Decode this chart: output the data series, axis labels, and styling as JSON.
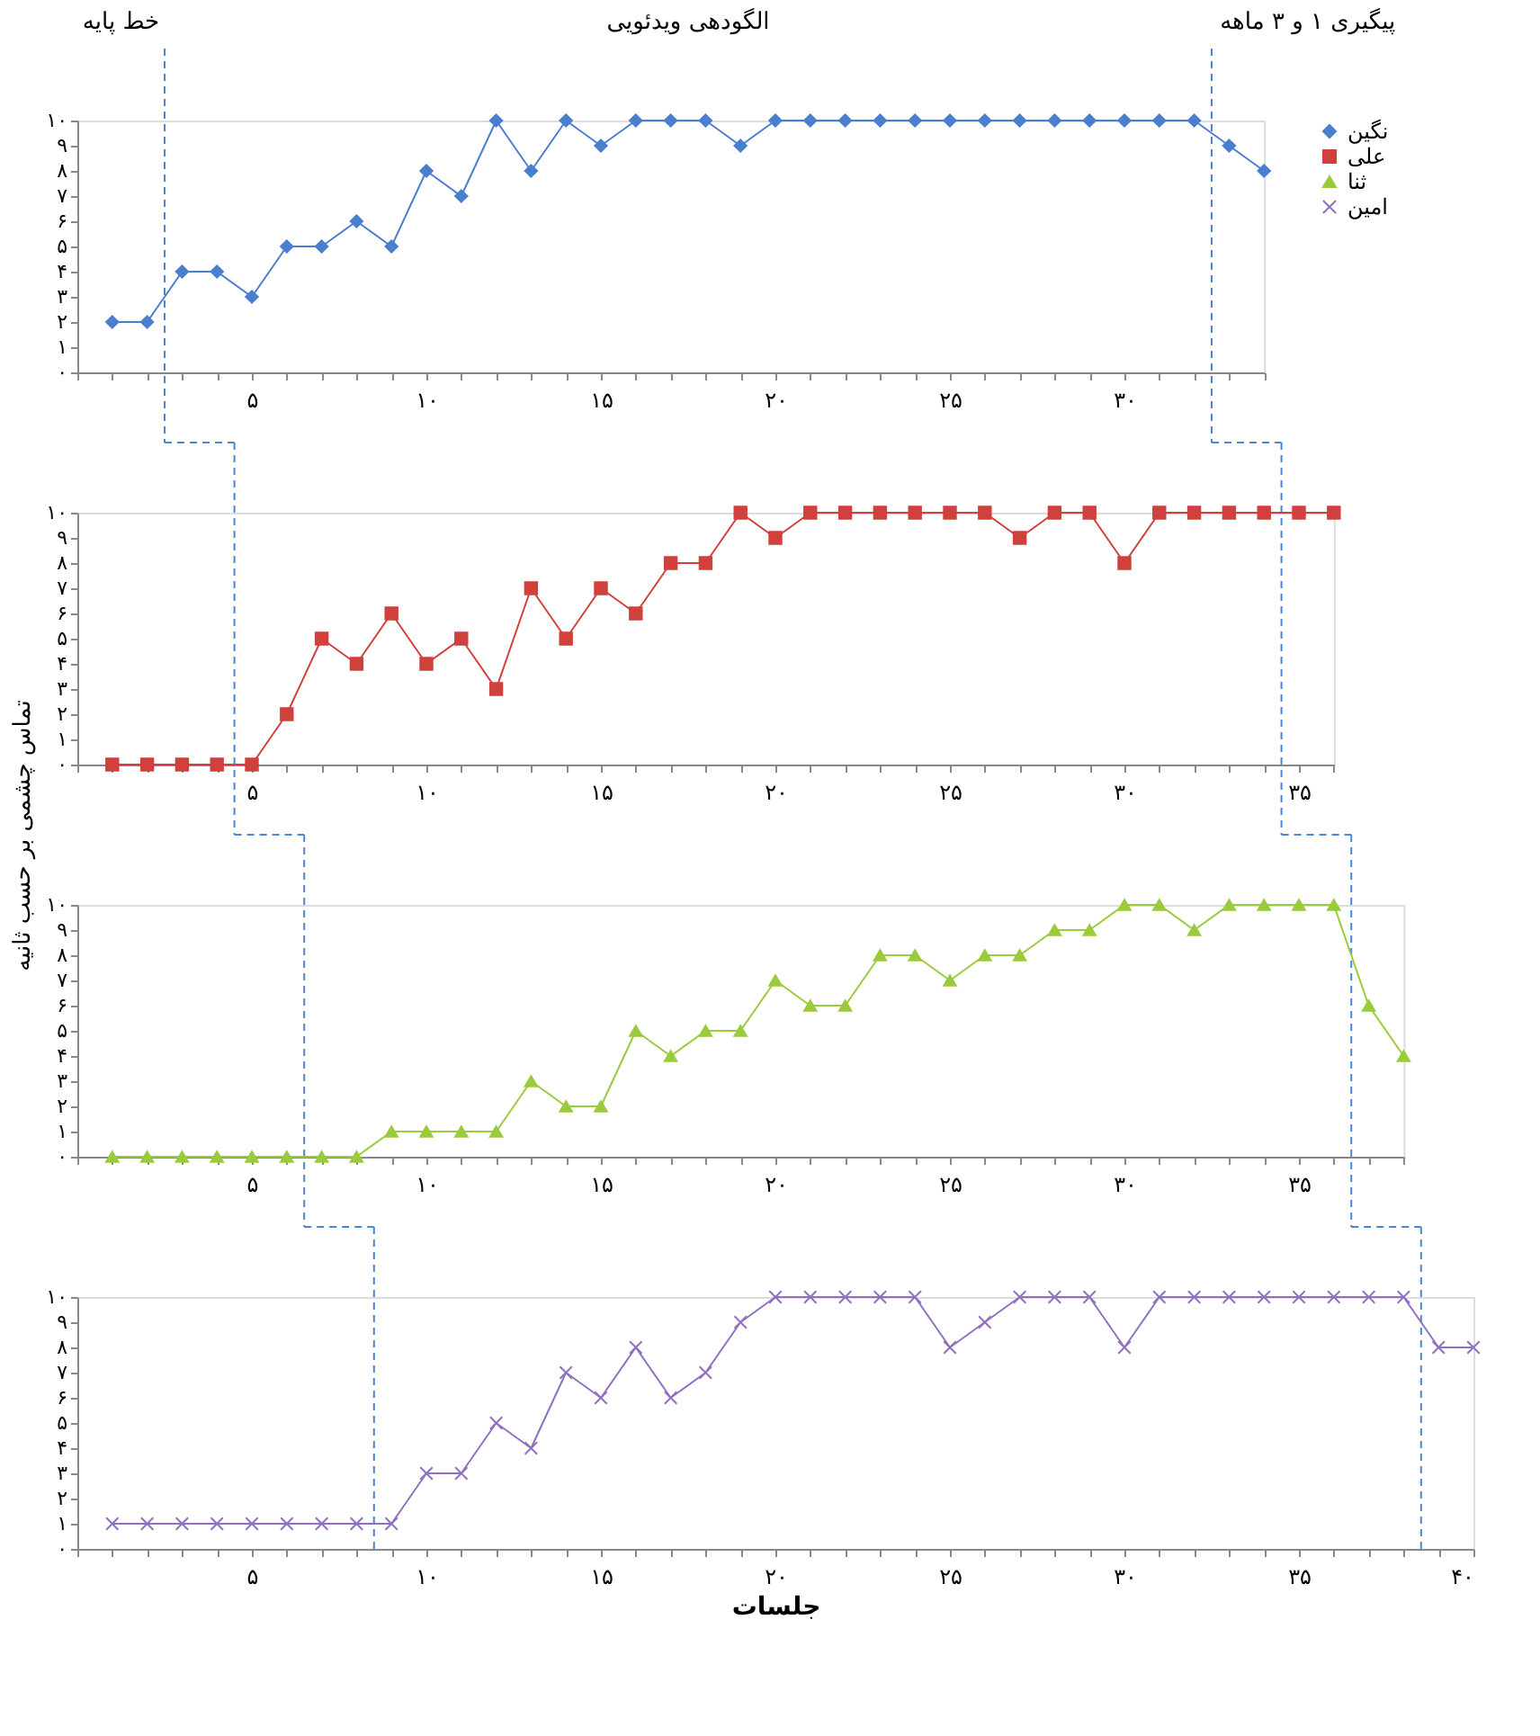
{
  "chart_data": [
    {
      "type": "line",
      "legend": "right",
      "grid": false,
      "annotations": [
        "خط پایه",
        "الگودهی ویدئویی",
        "پیگیری ۱ و ۳ ماهه"
      ],
      "xlim": [
        0,
        34
      ],
      "ylim": [
        0,
        10
      ],
      "xticks": [
        {
          "value": 0,
          "label": null
        },
        {
          "value": 1,
          "label": null
        },
        {
          "value": 2,
          "label": null
        },
        {
          "value": 3,
          "label": null
        },
        {
          "value": 4,
          "label": null
        },
        {
          "value": 5,
          "label": "۵"
        },
        {
          "value": 6,
          "label": null
        },
        {
          "value": 7,
          "label": null
        },
        {
          "value": 8,
          "label": null
        },
        {
          "value": 9,
          "label": null
        },
        {
          "value": 10,
          "label": "۱۰"
        },
        {
          "value": 11,
          "label": null
        },
        {
          "value": 12,
          "label": null
        },
        {
          "value": 13,
          "label": null
        },
        {
          "value": 14,
          "label": null
        },
        {
          "value": 15,
          "label": "۱۵"
        },
        {
          "value": 16,
          "label": null
        },
        {
          "value": 17,
          "label": null
        },
        {
          "value": 18,
          "label": null
        },
        {
          "value": 19,
          "label": null
        },
        {
          "value": 20,
          "label": "۲۰"
        },
        {
          "value": 21,
          "label": null
        },
        {
          "value": 22,
          "label": null
        },
        {
          "value": 23,
          "label": null
        },
        {
          "value": 24,
          "label": null
        },
        {
          "value": 25,
          "label": "۲۵"
        },
        {
          "value": 26,
          "label": null
        },
        {
          "value": 27,
          "label": null
        },
        {
          "value": 28,
          "label": null
        },
        {
          "value": 29,
          "label": null
        },
        {
          "value": 30,
          "label": "۳۰"
        },
        {
          "value": 31,
          "label": null
        },
        {
          "value": 32,
          "label": null
        },
        {
          "value": 33,
          "label": null
        },
        {
          "value": 34,
          "label": null
        }
      ],
      "yticks": [
        {
          "value": 0,
          "label": "۰"
        },
        {
          "value": 1,
          "label": "۱"
        },
        {
          "value": 2,
          "label": "۲"
        },
        {
          "value": 3,
          "label": "۳"
        },
        {
          "value": 4,
          "label": "۴"
        },
        {
          "value": 5,
          "label": "۵"
        },
        {
          "value": 6,
          "label": "۶"
        },
        {
          "value": 7,
          "label": "۷"
        },
        {
          "value": 8,
          "label": "۸"
        },
        {
          "value": 9,
          "label": "۹"
        },
        {
          "value": 10,
          "label": "۱۰"
        }
      ],
      "ref_lines": [
        {
          "axis": "x",
          "value": 2.5,
          "color": "#4a86d4",
          "line_style": "dashed"
        },
        {
          "axis": "x",
          "value": 32.5,
          "color": "#4a86d4",
          "line_style": "dashed"
        }
      ],
      "series": [
        {
          "name": "نگین",
          "color": "#4a7fd0",
          "marker": "diamond",
          "line_style": "solid",
          "x": [
            1,
            2,
            3,
            4,
            5,
            6,
            7,
            8,
            9,
            10,
            11,
            12,
            13,
            14,
            15,
            16,
            17,
            18,
            19,
            20,
            21,
            22,
            23,
            24,
            25,
            26,
            27,
            28,
            29,
            30,
            31,
            32,
            33,
            34
          ],
          "values": [
            2,
            2,
            4,
            4,
            3,
            5,
            5,
            6,
            5,
            8,
            7,
            10,
            8,
            10,
            9,
            10,
            10,
            10,
            9,
            10,
            10,
            10,
            10,
            10,
            10,
            10,
            10,
            10,
            10,
            10,
            10,
            10,
            9,
            8
          ]
        }
      ]
    },
    {
      "type": "line",
      "grid": false,
      "ylabel": "تماس چشمی بر حسب ثانیه",
      "xlim": [
        0,
        36
      ],
      "ylim": [
        0,
        10
      ],
      "xticks": [
        {
          "value": 0,
          "label": null
        },
        {
          "value": 1,
          "label": null
        },
        {
          "value": 2,
          "label": null
        },
        {
          "value": 3,
          "label": null
        },
        {
          "value": 4,
          "label": null
        },
        {
          "value": 5,
          "label": "۵"
        },
        {
          "value": 6,
          "label": null
        },
        {
          "value": 7,
          "label": null
        },
        {
          "value": 8,
          "label": null
        },
        {
          "value": 9,
          "label": null
        },
        {
          "value": 10,
          "label": "۱۰"
        },
        {
          "value": 11,
          "label": null
        },
        {
          "value": 12,
          "label": null
        },
        {
          "value": 13,
          "label": null
        },
        {
          "value": 14,
          "label": null
        },
        {
          "value": 15,
          "label": "۱۵"
        },
        {
          "value": 16,
          "label": null
        },
        {
          "value": 17,
          "label": null
        },
        {
          "value": 18,
          "label": null
        },
        {
          "value": 19,
          "label": null
        },
        {
          "value": 20,
          "label": "۲۰"
        },
        {
          "value": 21,
          "label": null
        },
        {
          "value": 22,
          "label": null
        },
        {
          "value": 23,
          "label": null
        },
        {
          "value": 24,
          "label": null
        },
        {
          "value": 25,
          "label": "۲۵"
        },
        {
          "value": 26,
          "label": null
        },
        {
          "value": 27,
          "label": null
        },
        {
          "value": 28,
          "label": null
        },
        {
          "value": 29,
          "label": null
        },
        {
          "value": 30,
          "label": "۳۰"
        },
        {
          "value": 31,
          "label": null
        },
        {
          "value": 32,
          "label": null
        },
        {
          "value": 33,
          "label": null
        },
        {
          "value": 34,
          "label": null
        },
        {
          "value": 35,
          "label": "۳۵"
        },
        {
          "value": 36,
          "label": null
        }
      ],
      "yticks": [
        {
          "value": 0,
          "label": "۰"
        },
        {
          "value": 1,
          "label": "۱"
        },
        {
          "value": 2,
          "label": "۲"
        },
        {
          "value": 3,
          "label": "۳"
        },
        {
          "value": 4,
          "label": "۴"
        },
        {
          "value": 5,
          "label": "۵"
        },
        {
          "value": 6,
          "label": "۶"
        },
        {
          "value": 7,
          "label": "۷"
        },
        {
          "value": 8,
          "label": "۸"
        },
        {
          "value": 9,
          "label": "۹"
        },
        {
          "value": 10,
          "label": "۱۰"
        }
      ],
      "ref_lines": [
        {
          "axis": "x",
          "value": 4.5,
          "color": "#4a86d4",
          "line_style": "dashed"
        },
        {
          "axis": "x",
          "value": 34.5,
          "color": "#4a86d4",
          "line_style": "dashed"
        }
      ],
      "series": [
        {
          "name": "علی",
          "color": "#d0403c",
          "marker": "square",
          "line_style": "solid",
          "x": [
            1,
            2,
            3,
            4,
            5,
            6,
            7,
            8,
            9,
            10,
            11,
            12,
            13,
            14,
            15,
            16,
            17,
            18,
            19,
            20,
            21,
            22,
            23,
            24,
            25,
            26,
            27,
            28,
            29,
            30,
            31,
            32,
            33,
            34,
            35,
            36
          ],
          "values": [
            0,
            0,
            0,
            0,
            0,
            2,
            5,
            4,
            6,
            4,
            5,
            3,
            7,
            5,
            7,
            6,
            8,
            8,
            10,
            9,
            10,
            10,
            10,
            10,
            10,
            10,
            9,
            10,
            10,
            8,
            10,
            10,
            10,
            10,
            10,
            10
          ]
        }
      ]
    },
    {
      "type": "line",
      "grid": false,
      "xlim": [
        0,
        38
      ],
      "ylim": [
        0,
        10
      ],
      "xticks": [
        {
          "value": 0,
          "label": null
        },
        {
          "value": 1,
          "label": null
        },
        {
          "value": 2,
          "label": null
        },
        {
          "value": 3,
          "label": null
        },
        {
          "value": 4,
          "label": null
        },
        {
          "value": 5,
          "label": "۵"
        },
        {
          "value": 6,
          "label": null
        },
        {
          "value": 7,
          "label": null
        },
        {
          "value": 8,
          "label": null
        },
        {
          "value": 9,
          "label": null
        },
        {
          "value": 10,
          "label": "۱۰"
        },
        {
          "value": 11,
          "label": null
        },
        {
          "value": 12,
          "label": null
        },
        {
          "value": 13,
          "label": null
        },
        {
          "value": 14,
          "label": null
        },
        {
          "value": 15,
          "label": "۱۵"
        },
        {
          "value": 16,
          "label": null
        },
        {
          "value": 17,
          "label": null
        },
        {
          "value": 18,
          "label": null
        },
        {
          "value": 19,
          "label": null
        },
        {
          "value": 20,
          "label": "۲۰"
        },
        {
          "value": 21,
          "label": null
        },
        {
          "value": 22,
          "label": null
        },
        {
          "value": 23,
          "label": null
        },
        {
          "value": 24,
          "label": null
        },
        {
          "value": 25,
          "label": "۲۵"
        },
        {
          "value": 26,
          "label": null
        },
        {
          "value": 27,
          "label": null
        },
        {
          "value": 28,
          "label": null
        },
        {
          "value": 29,
          "label": null
        },
        {
          "value": 30,
          "label": "۳۰"
        },
        {
          "value": 31,
          "label": null
        },
        {
          "value": 32,
          "label": null
        },
        {
          "value": 33,
          "label": null
        },
        {
          "value": 34,
          "label": null
        },
        {
          "value": 35,
          "label": "۳۵"
        },
        {
          "value": 36,
          "label": null
        },
        {
          "value": 37,
          "label": null
        },
        {
          "value": 38,
          "label": null
        }
      ],
      "yticks": [
        {
          "value": 0,
          "label": "۰"
        },
        {
          "value": 1,
          "label": "۱"
        },
        {
          "value": 2,
          "label": "۲"
        },
        {
          "value": 3,
          "label": "۳"
        },
        {
          "value": 4,
          "label": "۴"
        },
        {
          "value": 5,
          "label": "۵"
        },
        {
          "value": 6,
          "label": "۶"
        },
        {
          "value": 7,
          "label": "۷"
        },
        {
          "value": 8,
          "label": "۸"
        },
        {
          "value": 9,
          "label": "۹"
        },
        {
          "value": 10,
          "label": "۱۰"
        }
      ],
      "ref_lines": [
        {
          "axis": "x",
          "value": 6.5,
          "color": "#4a86d4",
          "line_style": "dashed"
        },
        {
          "axis": "x",
          "value": 36.5,
          "color": "#4a86d4",
          "line_style": "dashed"
        }
      ],
      "series": [
        {
          "name": "ثنا",
          "color": "#9acb3c",
          "marker": "triangle",
          "line_style": "solid",
          "x": [
            1,
            2,
            3,
            4,
            5,
            6,
            7,
            8,
            9,
            10,
            11,
            12,
            13,
            14,
            15,
            16,
            17,
            18,
            19,
            20,
            21,
            22,
            23,
            24,
            25,
            26,
            27,
            28,
            29,
            30,
            31,
            32,
            33,
            34,
            35,
            36,
            37,
            38
          ],
          "values": [
            0,
            0,
            0,
            0,
            0,
            0,
            0,
            0,
            1,
            1,
            1,
            1,
            3,
            2,
            2,
            5,
            4,
            5,
            5,
            7,
            6,
            6,
            8,
            8,
            7,
            8,
            8,
            9,
            9,
            10,
            10,
            9,
            10,
            10,
            10,
            10,
            6,
            4
          ]
        }
      ]
    },
    {
      "type": "line",
      "grid": false,
      "xlabel": "جلسات",
      "xlim": [
        0,
        40
      ],
      "ylim": [
        0,
        10
      ],
      "xticks": [
        {
          "value": 0,
          "label": null
        },
        {
          "value": 1,
          "label": null
        },
        {
          "value": 2,
          "label": null
        },
        {
          "value": 3,
          "label": null
        },
        {
          "value": 4,
          "label": null
        },
        {
          "value": 5,
          "label": "۵"
        },
        {
          "value": 6,
          "label": null
        },
        {
          "value": 7,
          "label": null
        },
        {
          "value": 8,
          "label": null
        },
        {
          "value": 9,
          "label": null
        },
        {
          "value": 10,
          "label": "۱۰"
        },
        {
          "value": 11,
          "label": null
        },
        {
          "value": 12,
          "label": null
        },
        {
          "value": 13,
          "label": null
        },
        {
          "value": 14,
          "label": null
        },
        {
          "value": 15,
          "label": "۱۵"
        },
        {
          "value": 16,
          "label": null
        },
        {
          "value": 17,
          "label": null
        },
        {
          "value": 18,
          "label": null
        },
        {
          "value": 19,
          "label": null
        },
        {
          "value": 20,
          "label": "۲۰"
        },
        {
          "value": 21,
          "label": null
        },
        {
          "value": 22,
          "label": null
        },
        {
          "value": 23,
          "label": null
        },
        {
          "value": 24,
          "label": null
        },
        {
          "value": 25,
          "label": "۲۵"
        },
        {
          "value": 26,
          "label": null
        },
        {
          "value": 27,
          "label": null
        },
        {
          "value": 28,
          "label": null
        },
        {
          "value": 29,
          "label": null
        },
        {
          "value": 30,
          "label": "۳۰"
        },
        {
          "value": 31,
          "label": null
        },
        {
          "value": 32,
          "label": null
        },
        {
          "value": 33,
          "label": null
        },
        {
          "value": 34,
          "label": null
        },
        {
          "value": 35,
          "label": "۳۵"
        },
        {
          "value": 36,
          "label": null
        },
        {
          "value": 37,
          "label": null
        },
        {
          "value": 38,
          "label": null
        },
        {
          "value": 39,
          "label": null
        },
        {
          "value": 40,
          "label": "۴۰"
        }
      ],
      "yticks": [
        {
          "value": 0,
          "label": "۰"
        },
        {
          "value": 1,
          "label": "۱"
        },
        {
          "value": 2,
          "label": "۲"
        },
        {
          "value": 3,
          "label": "۳"
        },
        {
          "value": 4,
          "label": "۴"
        },
        {
          "value": 5,
          "label": "۵"
        },
        {
          "value": 6,
          "label": "۶"
        },
        {
          "value": 7,
          "label": "۷"
        },
        {
          "value": 8,
          "label": "۸"
        },
        {
          "value": 9,
          "label": "۹"
        },
        {
          "value": 10,
          "label": "۱۰"
        }
      ],
      "ref_lines": [
        {
          "axis": "x",
          "value": 8.5,
          "color": "#4a86d4",
          "line_style": "dashed"
        },
        {
          "axis": "x",
          "value": 38.5,
          "color": "#4a86d4",
          "line_style": "dashed"
        }
      ],
      "series": [
        {
          "name": "امین",
          "color": "#9070c0",
          "marker": "cross",
          "line_style": "solid",
          "x": [
            1,
            2,
            3,
            4,
            5,
            6,
            7,
            8,
            9,
            10,
            11,
            12,
            13,
            14,
            15,
            16,
            17,
            18,
            19,
            20,
            21,
            22,
            23,
            24,
            25,
            26,
            27,
            28,
            29,
            30,
            31,
            32,
            33,
            34,
            35,
            36,
            37,
            38,
            39,
            40
          ],
          "values": [
            1,
            1,
            1,
            1,
            1,
            1,
            1,
            1,
            1,
            3,
            3,
            5,
            4,
            7,
            6,
            8,
            6,
            7,
            9,
            10,
            10,
            10,
            10,
            10,
            8,
            9,
            10,
            10,
            10,
            8,
            10,
            10,
            10,
            10,
            10,
            10,
            10,
            10,
            8,
            8
          ]
        }
      ]
    }
  ]
}
